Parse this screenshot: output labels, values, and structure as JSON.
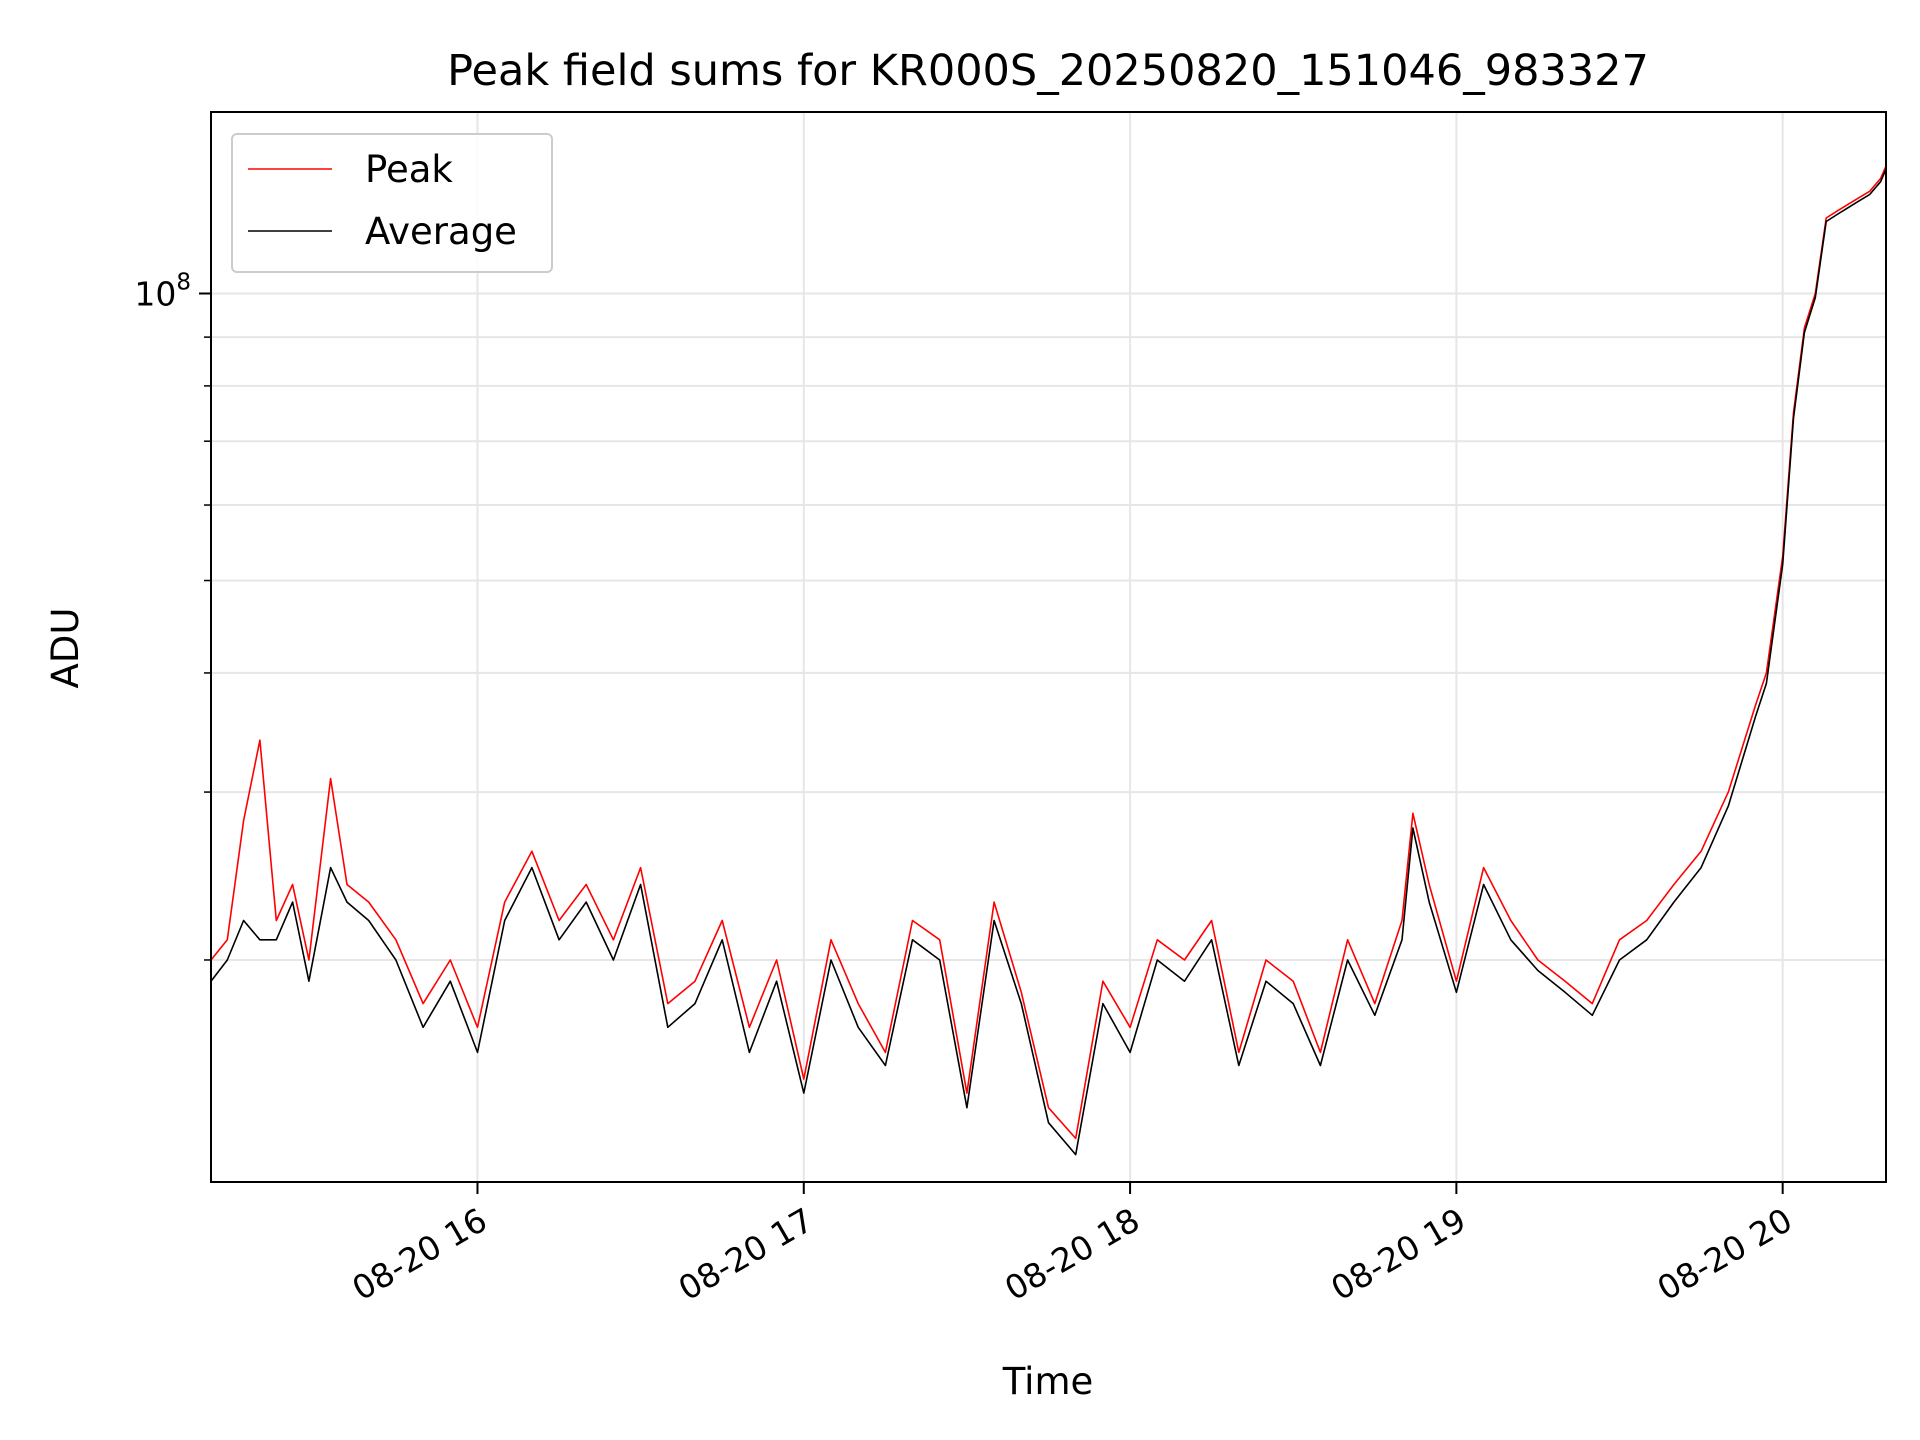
{
  "chart_data": {
    "type": "line",
    "title": "Peak field sums for KR000S_20250820_151046_983327",
    "xlabel": "Time",
    "ylabel": "ADU",
    "yscale": "log",
    "grid": true,
    "legend_position": "top-left",
    "xlim": [
      "2025-08-20 15:11",
      "2025-08-20 20:19"
    ],
    "ylim": [
      11700000,
      155000000
    ],
    "x_ticks": [
      "08-20 16",
      "08-20 17",
      "08-20 18",
      "08-20 19",
      "08-20 20"
    ],
    "y_ticks": [
      {
        "value": 100000000,
        "base": "10",
        "exponent": "8"
      }
    ],
    "colors": {
      "peak": "#ff0000",
      "average": "#000000"
    },
    "x": [
      "15:11",
      "15:14",
      "15:17",
      "15:20",
      "15:23",
      "15:26",
      "15:29",
      "15:33",
      "15:36",
      "15:40",
      "15:45",
      "15:50",
      "15:55",
      "16:00",
      "16:05",
      "16:10",
      "16:15",
      "16:20",
      "16:25",
      "16:30",
      "16:35",
      "16:40",
      "16:45",
      "16:50",
      "16:55",
      "17:00",
      "17:05",
      "17:10",
      "17:15",
      "17:20",
      "17:25",
      "17:30",
      "17:35",
      "17:40",
      "17:45",
      "17:50",
      "17:55",
      "18:00",
      "18:05",
      "18:10",
      "18:15",
      "18:20",
      "18:25",
      "18:30",
      "18:35",
      "18:40",
      "18:45",
      "18:50",
      "18:52",
      "18:55",
      "19:00",
      "19:05",
      "19:10",
      "19:15",
      "19:20",
      "19:25",
      "19:30",
      "19:35",
      "19:40",
      "19:45",
      "19:50",
      "19:55",
      "19:57",
      "20:00",
      "20:02",
      "20:04",
      "20:06",
      "20:08",
      "20:10",
      "20:12",
      "20:14",
      "20:16",
      "20:18",
      "20:19"
    ],
    "series": [
      {
        "name": "Peak",
        "values": [
          20000000,
          21000000,
          28000000,
          34000000,
          22000000,
          24000000,
          20000000,
          31000000,
          24000000,
          23000000,
          21000000,
          18000000,
          20000000,
          17000000,
          23000000,
          26000000,
          22000000,
          24000000,
          21000000,
          25000000,
          18000000,
          19000000,
          22000000,
          17000000,
          20000000,
          15000000,
          21000000,
          18000000,
          16000000,
          22000000,
          21000000,
          14500000,
          23000000,
          18500000,
          14000000,
          13000000,
          19000000,
          17000000,
          21000000,
          20000000,
          22000000,
          16000000,
          20000000,
          19000000,
          16000000,
          21000000,
          18000000,
          22000000,
          28500000,
          24000000,
          19000000,
          25000000,
          22000000,
          20000000,
          19000000,
          18000000,
          21000000,
          22000000,
          24000000,
          26000000,
          30000000,
          37000000,
          40000000,
          53000000,
          75000000,
          92000000,
          100000000,
          120000000,
          122000000,
          124000000,
          126000000,
          128000000,
          132000000,
          136000000
        ]
      },
      {
        "name": "Average",
        "values": [
          19000000,
          20000000,
          22000000,
          21000000,
          21000000,
          23000000,
          19000000,
          25000000,
          23000000,
          22000000,
          20000000,
          17000000,
          19000000,
          16000000,
          22000000,
          25000000,
          21000000,
          23000000,
          20000000,
          24000000,
          17000000,
          18000000,
          21000000,
          16000000,
          19000000,
          14500000,
          20000000,
          17000000,
          15500000,
          21000000,
          20000000,
          14000000,
          22000000,
          18000000,
          13500000,
          12500000,
          18000000,
          16000000,
          20000000,
          19000000,
          21000000,
          15500000,
          19000000,
          18000000,
          15500000,
          20000000,
          17500000,
          21000000,
          27500000,
          23000000,
          18500000,
          24000000,
          21000000,
          19500000,
          18500000,
          17500000,
          20000000,
          21000000,
          23000000,
          25000000,
          29000000,
          36000000,
          39000000,
          52000000,
          74000000,
          91000000,
          99000000,
          119000000,
          121000000,
          123000000,
          125000000,
          127000000,
          131000000,
          135000000
        ]
      }
    ]
  }
}
